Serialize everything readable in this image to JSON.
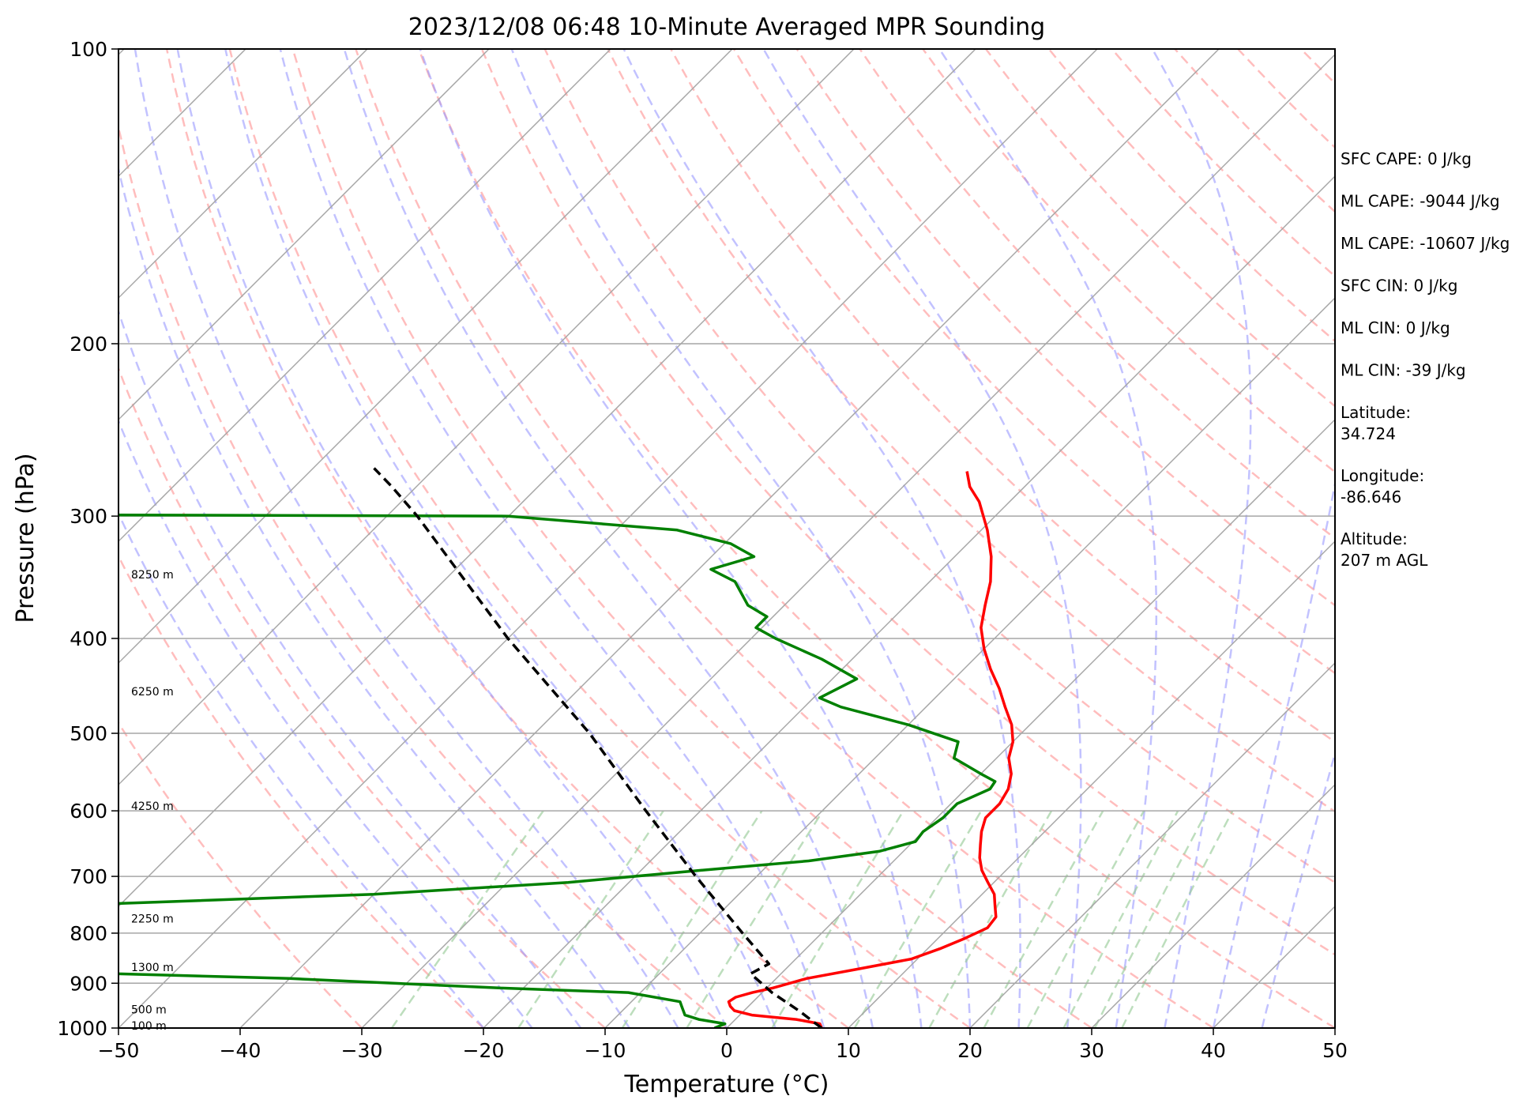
{
  "chart_data": {
    "type": "line",
    "subtype": "skew-T log-P sounding diagram",
    "title": "2023/12/08 06:48 10-Minute Averaged MPR Sounding",
    "xlabel": "Temperature (°C)",
    "ylabel": "Pressure (hPa)",
    "xlim": [
      -50,
      50
    ],
    "ylim": [
      1000,
      100
    ],
    "y_scale": "log",
    "x_ticks": [
      -50,
      -40,
      -30,
      -20,
      -10,
      0,
      10,
      20,
      30,
      40,
      50
    ],
    "x_tick_labels": [
      "−50",
      "−40",
      "−30",
      "−20",
      "−10",
      "0",
      "10",
      "20",
      "30",
      "40",
      "50"
    ],
    "y_ticks": [
      1000,
      900,
      800,
      700,
      600,
      500,
      400,
      300,
      200,
      100
    ],
    "y_tick_labels": [
      "1000",
      "900",
      "800",
      "700",
      "600",
      "500",
      "400",
      "300",
      "200",
      "100"
    ],
    "grid": true,
    "background_lines": {
      "isotherms_color": "#a6a6a6",
      "dry_adiabats_color": "#ff9999",
      "moist_adiabats_color": "#9999ff",
      "mixing_ratio_color": "#99cc99"
    },
    "height_labels": [
      {
        "pressure": 344,
        "text": "8250 m"
      },
      {
        "pressure": 453,
        "text": "6250 m"
      },
      {
        "pressure": 593,
        "text": "4250 m"
      },
      {
        "pressure": 773,
        "text": "2250 m"
      },
      {
        "pressure": 867,
        "text": "1300 m"
      },
      {
        "pressure": 957,
        "text": "500 m"
      },
      {
        "pressure": 994,
        "text": "100 m"
      }
    ],
    "series": [
      {
        "key": "temperature",
        "color": "#ff0000",
        "style": "solid",
        "points": [
          [
            1000,
            7.8
          ],
          [
            990,
            7.3
          ],
          [
            980,
            5.0
          ],
          [
            970,
            1.0
          ],
          [
            960,
            -0.8
          ],
          [
            950,
            -1.5
          ],
          [
            940,
            -2.0
          ],
          [
            930,
            -1.8
          ],
          [
            920,
            -0.8
          ],
          [
            910,
            0.5
          ],
          [
            900,
            1.5
          ],
          [
            890,
            2.5
          ],
          [
            870,
            6.0
          ],
          [
            850,
            9.5
          ],
          [
            830,
            11.0
          ],
          [
            810,
            12.2
          ],
          [
            790,
            13.2
          ],
          [
            770,
            13.0
          ],
          [
            750,
            12.0
          ],
          [
            730,
            11.0
          ],
          [
            710,
            9.5
          ],
          [
            690,
            8.0
          ],
          [
            670,
            6.8
          ],
          [
            650,
            5.8
          ],
          [
            630,
            4.8
          ],
          [
            610,
            4.0
          ],
          [
            590,
            4.0
          ],
          [
            570,
            3.5
          ],
          [
            550,
            2.5
          ],
          [
            530,
            1.0
          ],
          [
            510,
            0.0
          ],
          [
            490,
            -1.5
          ],
          [
            470,
            -3.5
          ],
          [
            450,
            -5.5
          ],
          [
            430,
            -7.8
          ],
          [
            410,
            -10.0
          ],
          [
            390,
            -12.0
          ],
          [
            370,
            -13.5
          ],
          [
            350,
            -15.0
          ],
          [
            330,
            -17.0
          ],
          [
            310,
            -19.5
          ],
          [
            290,
            -22.5
          ],
          [
            280,
            -24.5
          ],
          [
            270,
            -26.0
          ]
        ]
      },
      {
        "key": "dewpoint",
        "color": "#008000",
        "style": "solid",
        "points": [
          [
            1000,
            -1.0
          ],
          [
            990,
            -0.5
          ],
          [
            980,
            -3.0
          ],
          [
            970,
            -4.5
          ],
          [
            960,
            -5.0
          ],
          [
            950,
            -5.5
          ],
          [
            940,
            -6.0
          ],
          [
            920,
            -11.0
          ],
          [
            910,
            -22.0
          ],
          [
            890,
            -40.0
          ],
          [
            880,
            -55.0
          ],
          [
            870,
            -65.0
          ],
          [
            860,
            -78.0
          ],
          [
            850,
            -90.0
          ],
          [
            820,
            -110.0
          ],
          [
            800,
            -115.0
          ],
          [
            785,
            -112.0
          ],
          [
            770,
            -100.0
          ],
          [
            760,
            -85.0
          ],
          [
            750,
            -65.0
          ],
          [
            730,
            -40.0
          ],
          [
            710,
            -25.0
          ],
          [
            690,
            -15.0
          ],
          [
            675,
            -7.0
          ],
          [
            660,
            -2.0
          ],
          [
            645,
            0.2
          ],
          [
            630,
            0.0
          ],
          [
            610,
            0.5
          ],
          [
            590,
            0.5
          ],
          [
            570,
            2.0
          ],
          [
            560,
            1.8
          ],
          [
            550,
            0.0
          ],
          [
            530,
            -3.5
          ],
          [
            510,
            -4.5
          ],
          [
            490,
            -10.0
          ],
          [
            470,
            -17.0
          ],
          [
            460,
            -19.5
          ],
          [
            440,
            -18.0
          ],
          [
            420,
            -22.5
          ],
          [
            400,
            -28.0
          ],
          [
            390,
            -30.5
          ],
          [
            380,
            -30.5
          ],
          [
            370,
            -33.0
          ],
          [
            350,
            -36.0
          ],
          [
            340,
            -39.0
          ],
          [
            330,
            -36.5
          ],
          [
            320,
            -39.5
          ],
          [
            310,
            -45.0
          ],
          [
            300,
            -60.0
          ],
          [
            299,
            -100.0
          ],
          [
            298,
            -130.0
          ]
        ]
      },
      {
        "key": "parcel",
        "color": "#000000",
        "style": "dashed",
        "points": [
          [
            1000,
            7.8
          ],
          [
            960,
            4.5
          ],
          [
            920,
            0.8
          ],
          [
            880,
            -2.5
          ],
          [
            860,
            -1.8
          ],
          [
            800,
            -6.5
          ],
          [
            700,
            -15.0
          ],
          [
            600,
            -24.5
          ],
          [
            500,
            -35.5
          ],
          [
            400,
            -50.0
          ],
          [
            300,
            -67.5
          ],
          [
            280,
            -72.0
          ],
          [
            268,
            -75.0
          ]
        ]
      }
    ]
  },
  "info_panel": [
    [
      "SFC CAPE: 0 J/kg"
    ],
    [
      "ML CAPE: -9044 J/kg"
    ],
    [
      "ML CAPE: -10607 J/kg"
    ],
    [
      "SFC CIN: 0 J/kg"
    ],
    [
      "ML CIN: 0 J/kg"
    ],
    [
      "ML CIN: -39 J/kg"
    ],
    [
      "Latitude:",
      "34.724"
    ],
    [
      "Longitude:",
      "-86.646"
    ],
    [
      "Altitude:",
      "207 m AGL"
    ]
  ]
}
